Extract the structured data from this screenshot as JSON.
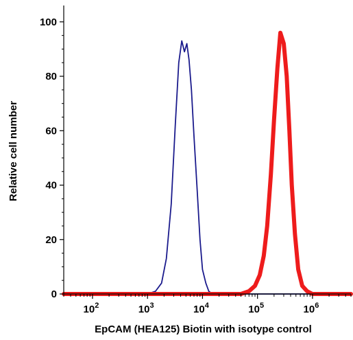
{
  "chart_data": {
    "type": "line",
    "title": "",
    "xlabel": "EpCAM (HEA125) Biotin with isotype control",
    "ylabel": "Relative cell number",
    "x_scale": "log",
    "xlim": [
      30,
      5000000
    ],
    "ylim": [
      0,
      105
    ],
    "grid": false,
    "y_ticks": [
      0,
      20,
      40,
      60,
      80,
      100
    ],
    "y_tick_labels": [
      "0",
      "20",
      "40",
      "60",
      "80",
      "100"
    ],
    "x_ticks": [
      {
        "value": 100,
        "base": "10",
        "exp": "2"
      },
      {
        "value": 1000,
        "base": "10",
        "exp": "3"
      },
      {
        "value": 10000,
        "base": "10",
        "exp": "4"
      },
      {
        "value": 100000,
        "base": "10",
        "exp": "5"
      },
      {
        "value": 1000000,
        "base": "10",
        "exp": "6"
      }
    ],
    "series": [
      {
        "color": "#1a1a8c",
        "stroke": "thin",
        "x": [
          30,
          1000,
          1400,
          1800,
          2200,
          2700,
          3200,
          3700,
          4200,
          4700,
          5200,
          5700,
          6300,
          7000,
          8000,
          9000,
          10000,
          11500,
          13000,
          15000,
          20000,
          5000000
        ],
        "y": [
          0,
          0,
          1,
          4,
          13,
          33,
          62,
          85,
          93,
          89,
          92,
          86,
          75,
          58,
          38,
          20,
          9,
          4,
          1,
          0,
          0,
          0
        ]
      },
      {
        "color": "#ee1c1c",
        "stroke": "thick",
        "x": [
          30,
          50000,
          70000,
          90000,
          110000,
          130000,
          150000,
          175000,
          200000,
          230000,
          260000,
          300000,
          340000,
          380000,
          420000,
          480000,
          550000,
          650000,
          800000,
          1000000,
          5000000
        ],
        "y": [
          0,
          0,
          1,
          3,
          7,
          14,
          25,
          44,
          64,
          83,
          96,
          92,
          80,
          60,
          40,
          22,
          9,
          3,
          1,
          0,
          0
        ]
      }
    ]
  }
}
